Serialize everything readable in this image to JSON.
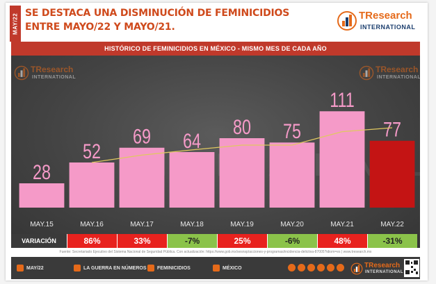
{
  "side_tab": "MAY/22",
  "headline": "SE DESTACA UNA DISMINUCIÓN DE FEMINICIDIOS ENTRE MAYO/22 Y MAYO/21.",
  "logo": {
    "main": "TResearch",
    "main_accent": "TR",
    "sub": "INTERNATIONAL"
  },
  "watermark": "INTERNATIONAL",
  "colors": {
    "accent": "#c0392b",
    "bar": "#f59ac8",
    "bar_highlight": "#c41414",
    "trend": "#e0c860",
    "brand_orange": "#e56a1a",
    "brand_navy": "#1a3d6d",
    "positive": "#e8221e",
    "negative": "#8bc34a"
  },
  "chart_data": {
    "type": "bar",
    "subtitle": "HISTÓRICO DE FEMINICIDIOS EN MÉXICO - MISMO MES DE CADA AÑO",
    "categories": [
      "MAY.15",
      "MAY.16",
      "MAY.17",
      "MAY.18",
      "MAY.19",
      "MAY.20",
      "MAY.21",
      "MAY.22"
    ],
    "values": [
      28,
      52,
      69,
      64,
      80,
      75,
      111,
      77
    ],
    "value_labels": [
      "28",
      "52",
      "69",
      "64",
      "80",
      "75",
      "111",
      "77"
    ],
    "highlight_index": 7,
    "trend_line": [
      null,
      52,
      60.5,
      66.5,
      72,
      72,
      87.5,
      92
    ],
    "ylim": [
      0,
      120
    ],
    "grid": false,
    "variation_label": "VARIACIÓN",
    "variation": [
      "",
      "86%",
      "33%",
      "-7%",
      "25%",
      "-6%",
      "48%",
      "-31%"
    ],
    "variation_sign": [
      "none",
      "up",
      "up",
      "down",
      "up",
      "down",
      "up",
      "down"
    ]
  },
  "source": "Fuente: Secretariado Ejecutivo del Sistema Nacional de Seguridad Pública. Con actualización: https://www.gob.mx/sesnsp/acciones-y-programas/incidencia-delictiva-87005?idiom=es | www.tresearch.mx",
  "footer": {
    "items": [
      "MAY/22",
      "LA GUERRA EN NÚMEROS",
      "FEMINICIDIOS",
      "MÉXICO"
    ]
  }
}
